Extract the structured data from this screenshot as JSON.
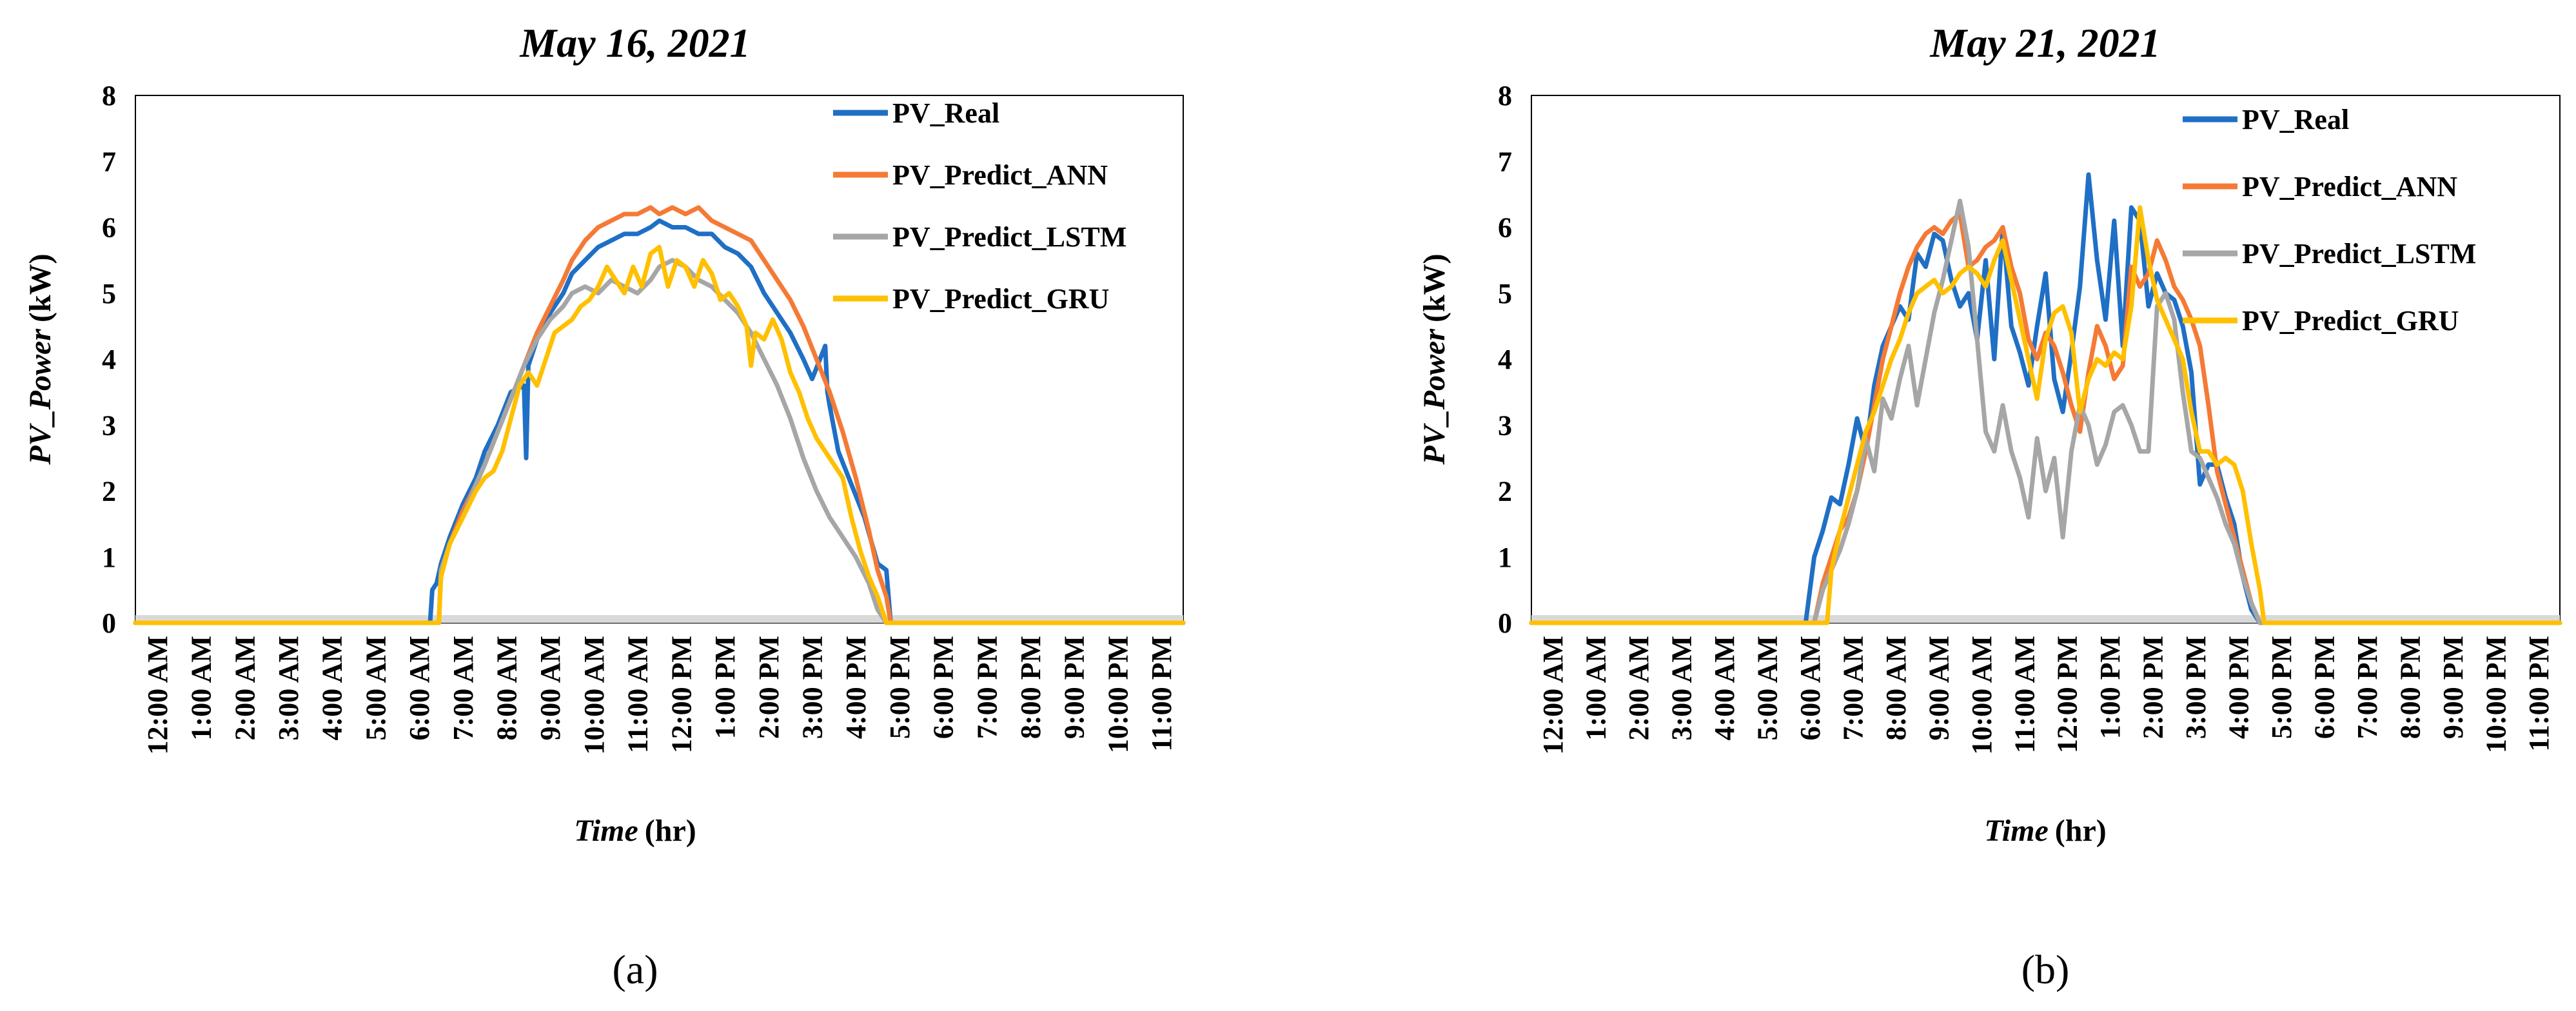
{
  "chart_data": [
    {
      "type": "line",
      "panel_label": "(a)",
      "title": "May 16, 2021",
      "ylabel_italic": "PV_Power",
      "ylabel_unit": "(kW)",
      "xlabel_italic": "Time",
      "xlabel_unit": "(hr)",
      "ylim": [
        0,
        8
      ],
      "yticks": [
        "0",
        "1",
        "2",
        "3",
        "4",
        "5",
        "6",
        "7",
        "8"
      ],
      "xlim": [
        0,
        24
      ],
      "xticks": [
        "12:00 AM",
        "1:00 AM",
        "2:00 AM",
        "3:00 AM",
        "4:00 AM",
        "5:00 AM",
        "6:00 AM",
        "7:00 AM",
        "8:00 AM",
        "9:00 AM",
        "10:00 AM",
        "11:00 AM",
        "12:00 PM",
        "1:00 PM",
        "2:00 PM",
        "3:00 PM",
        "4:00 PM",
        "5:00 PM",
        "6:00 PM",
        "7:00 PM",
        "8:00 PM",
        "9:00 PM",
        "10:00 PM",
        "11:00 PM"
      ],
      "legend_position": "top-right",
      "series": [
        {
          "name": "PV_Real",
          "color": "#1f6fc5",
          "x": [
            0,
            6.75,
            6.8,
            6.9,
            7.0,
            7.2,
            7.5,
            7.8,
            8.0,
            8.3,
            8.6,
            8.9,
            8.95,
            9.0,
            9.2,
            9.5,
            9.8,
            10.0,
            10.3,
            10.6,
            10.9,
            11.2,
            11.5,
            11.8,
            12.0,
            12.3,
            12.6,
            12.9,
            13.2,
            13.5,
            13.8,
            14.1,
            14.4,
            14.7,
            15.0,
            15.3,
            15.5,
            15.8,
            15.85,
            15.9,
            16.1,
            16.4,
            16.7,
            17.0,
            17.2,
            17.3,
            24
          ],
          "y": [
            0,
            0,
            0.5,
            0.6,
            0.9,
            1.3,
            1.8,
            2.2,
            2.6,
            3.0,
            3.5,
            3.6,
            2.5,
            3.9,
            4.3,
            4.7,
            5.0,
            5.3,
            5.5,
            5.7,
            5.8,
            5.9,
            5.9,
            6.0,
            6.1,
            6.0,
            6.0,
            5.9,
            5.9,
            5.7,
            5.6,
            5.4,
            5.0,
            4.7,
            4.4,
            4.0,
            3.7,
            4.2,
            3.5,
            3.3,
            2.6,
            2.1,
            1.6,
            0.9,
            0.8,
            0,
            0
          ]
        },
        {
          "name": "PV_Predict_ANN",
          "color": "#f47a35",
          "x": [
            0,
            6.95,
            7.0,
            7.2,
            7.5,
            7.8,
            8.0,
            8.3,
            8.6,
            8.9,
            9.2,
            9.5,
            9.8,
            10.0,
            10.3,
            10.6,
            10.9,
            11.2,
            11.5,
            11.8,
            12.0,
            12.3,
            12.6,
            12.9,
            13.2,
            13.5,
            13.8,
            14.1,
            14.4,
            14.7,
            15.0,
            15.3,
            15.6,
            15.9,
            16.2,
            16.5,
            16.8,
            17.0,
            17.2,
            17.3,
            24
          ],
          "y": [
            0,
            0,
            0.8,
            1.2,
            1.7,
            2.1,
            2.4,
            2.9,
            3.4,
            3.9,
            4.4,
            4.8,
            5.2,
            5.5,
            5.8,
            6.0,
            6.1,
            6.2,
            6.2,
            6.3,
            6.2,
            6.3,
            6.2,
            6.3,
            6.1,
            6.0,
            5.9,
            5.8,
            5.5,
            5.2,
            4.9,
            4.5,
            4.0,
            3.5,
            2.9,
            2.2,
            1.4,
            0.8,
            0.4,
            0,
            0
          ]
        },
        {
          "name": "PV_Predict_LSTM",
          "color": "#a6a6a6",
          "x": [
            0,
            6.95,
            7.0,
            7.2,
            7.5,
            7.8,
            8.0,
            8.3,
            8.6,
            8.9,
            9.2,
            9.5,
            9.8,
            10.0,
            10.3,
            10.6,
            10.9,
            11.2,
            11.5,
            11.8,
            12.0,
            12.3,
            12.6,
            12.9,
            13.2,
            13.5,
            13.8,
            14.1,
            14.4,
            14.7,
            15.0,
            15.3,
            15.6,
            15.9,
            16.2,
            16.5,
            16.8,
            17.0,
            17.2,
            24
          ],
          "y": [
            0,
            0,
            0.8,
            1.2,
            1.6,
            2.1,
            2.4,
            2.9,
            3.4,
            3.9,
            4.3,
            4.6,
            4.8,
            5.0,
            5.1,
            5.0,
            5.2,
            5.1,
            5.0,
            5.2,
            5.4,
            5.5,
            5.4,
            5.2,
            5.1,
            4.9,
            4.7,
            4.4,
            4.0,
            3.6,
            3.1,
            2.5,
            2.0,
            1.6,
            1.3,
            1.0,
            0.6,
            0.2,
            0,
            0
          ]
        },
        {
          "name": "PV_Predict_GRU",
          "color": "#ffc000",
          "x": [
            0,
            6.95,
            7.0,
            7.2,
            7.5,
            7.8,
            8.0,
            8.2,
            8.4,
            8.6,
            8.8,
            9.0,
            9.2,
            9.4,
            9.6,
            9.8,
            10.0,
            10.2,
            10.4,
            10.6,
            10.8,
            11.0,
            11.2,
            11.4,
            11.6,
            11.8,
            12.0,
            12.2,
            12.4,
            12.6,
            12.8,
            13.0,
            13.2,
            13.4,
            13.6,
            13.8,
            14.0,
            14.1,
            14.2,
            14.4,
            14.6,
            14.8,
            15.0,
            15.2,
            15.4,
            15.6,
            15.8,
            16.0,
            16.2,
            16.4,
            16.6,
            16.8,
            17.0,
            17.2,
            24
          ],
          "y": [
            0,
            0,
            0.7,
            1.2,
            1.6,
            2.0,
            2.2,
            2.3,
            2.6,
            3.1,
            3.6,
            3.8,
            3.6,
            4.0,
            4.4,
            4.5,
            4.6,
            4.8,
            4.9,
            5.1,
            5.4,
            5.2,
            5.0,
            5.4,
            5.1,
            5.6,
            5.7,
            5.1,
            5.5,
            5.4,
            5.1,
            5.5,
            5.3,
            4.9,
            5.0,
            4.8,
            4.5,
            3.9,
            4.4,
            4.3,
            4.6,
            4.3,
            3.8,
            3.5,
            3.1,
            2.8,
            2.6,
            2.4,
            2.2,
            1.6,
            1.1,
            0.7,
            0.4,
            0,
            0
          ]
        }
      ]
    },
    {
      "type": "line",
      "panel_label": "(b)",
      "title": "May 21, 2021",
      "ylabel_italic": "PV_Power",
      "ylabel_unit": "(kW)",
      "xlabel_italic": "Time",
      "xlabel_unit": "(hr)",
      "ylim": [
        0,
        8
      ],
      "yticks": [
        "0",
        "1",
        "2",
        "3",
        "4",
        "5",
        "6",
        "7",
        "8"
      ],
      "xlim": [
        0,
        24
      ],
      "xticks": [
        "12:00 AM",
        "1:00 AM",
        "2:00 AM",
        "3:00 AM",
        "4:00 AM",
        "5:00 AM",
        "6:00 AM",
        "7:00 AM",
        "8:00 AM",
        "9:00 AM",
        "10:00 AM",
        "11:00 AM",
        "12:00 PM",
        "1:00 PM",
        "2:00 PM",
        "3:00 PM",
        "4:00 PM",
        "5:00 PM",
        "6:00 PM",
        "7:00 PM",
        "8:00 PM",
        "9:00 PM",
        "10:00 PM",
        "11:00 PM"
      ],
      "legend_position": "top-right",
      "series": [
        {
          "name": "PV_Real",
          "color": "#1f6fc5",
          "x": [
            0,
            6.4,
            6.6,
            6.8,
            7.0,
            7.2,
            7.4,
            7.6,
            7.8,
            8.0,
            8.2,
            8.4,
            8.6,
            8.8,
            9.0,
            9.2,
            9.4,
            9.6,
            9.8,
            10.0,
            10.2,
            10.4,
            10.6,
            10.8,
            11.0,
            11.2,
            11.4,
            11.6,
            11.8,
            12.0,
            12.2,
            12.4,
            12.6,
            12.8,
            13.0,
            13.2,
            13.4,
            13.6,
            13.8,
            14.0,
            14.2,
            14.4,
            14.6,
            14.8,
            15.0,
            15.2,
            15.4,
            15.6,
            15.8,
            16.0,
            16.2,
            16.4,
            16.6,
            16.8,
            17.0,
            17.1,
            24
          ],
          "y": [
            0,
            0,
            1.0,
            1.4,
            1.9,
            1.8,
            2.4,
            3.1,
            2.6,
            3.6,
            4.2,
            4.5,
            4.8,
            4.6,
            5.6,
            5.4,
            5.9,
            5.8,
            5.2,
            4.8,
            5.0,
            4.3,
            5.5,
            4.0,
            6.0,
            4.5,
            4.1,
            3.6,
            4.5,
            5.3,
            3.7,
            3.2,
            4.1,
            5.1,
            6.8,
            5.5,
            4.6,
            6.1,
            4.2,
            6.3,
            6.1,
            4.8,
            5.3,
            5.0,
            4.9,
            4.5,
            3.8,
            2.1,
            2.4,
            2.4,
            1.9,
            1.5,
            0.7,
            0.2,
            0,
            0,
            0
          ]
        },
        {
          "name": "PV_Predict_ANN",
          "color": "#f47a35",
          "x": [
            0,
            6.6,
            6.8,
            7.0,
            7.2,
            7.4,
            7.6,
            7.8,
            8.0,
            8.2,
            8.4,
            8.6,
            8.8,
            9.0,
            9.2,
            9.4,
            9.6,
            9.8,
            10.0,
            10.2,
            10.4,
            10.6,
            10.8,
            11.0,
            11.2,
            11.4,
            11.6,
            11.8,
            12.0,
            12.2,
            12.4,
            12.6,
            12.8,
            13.0,
            13.2,
            13.4,
            13.6,
            13.8,
            14.0,
            14.2,
            14.4,
            14.6,
            14.8,
            15.0,
            15.2,
            15.4,
            15.6,
            15.8,
            16.0,
            16.2,
            16.4,
            16.6,
            16.8,
            17.0,
            24
          ],
          "y": [
            0,
            0,
            0.6,
            1.0,
            1.4,
            1.6,
            2.0,
            2.6,
            3.3,
            4.0,
            4.5,
            5.0,
            5.4,
            5.7,
            5.9,
            6.0,
            5.9,
            6.1,
            6.2,
            5.4,
            5.5,
            5.7,
            5.8,
            6.0,
            5.4,
            5.0,
            4.3,
            4.0,
            4.4,
            4.2,
            3.8,
            3.3,
            2.9,
            3.8,
            4.5,
            4.2,
            3.7,
            3.9,
            5.4,
            5.1,
            5.3,
            5.8,
            5.5,
            5.1,
            4.9,
            4.6,
            4.2,
            3.3,
            2.3,
            1.8,
            1.3,
            0.8,
            0.3,
            0,
            0
          ]
        },
        {
          "name": "PV_Predict_LSTM",
          "color": "#a6a6a6",
          "x": [
            0,
            6.6,
            6.8,
            7.0,
            7.2,
            7.4,
            7.6,
            7.8,
            8.0,
            8.2,
            8.4,
            8.6,
            8.8,
            9.0,
            9.2,
            9.4,
            9.6,
            9.8,
            10.0,
            10.2,
            10.4,
            10.6,
            10.8,
            11.0,
            11.2,
            11.4,
            11.6,
            11.8,
            12.0,
            12.2,
            12.4,
            12.6,
            12.8,
            13.0,
            13.2,
            13.4,
            13.6,
            13.8,
            14.0,
            14.2,
            14.4,
            14.6,
            14.8,
            15.0,
            15.2,
            15.4,
            15.6,
            15.8,
            16.0,
            16.2,
            16.4,
            16.6,
            16.8,
            17.0,
            24
          ],
          "y": [
            0,
            0,
            0.5,
            0.8,
            1.1,
            1.5,
            2.0,
            2.8,
            2.3,
            3.4,
            3.1,
            3.7,
            4.2,
            3.3,
            4.0,
            4.7,
            5.2,
            5.8,
            6.4,
            5.7,
            4.3,
            2.9,
            2.6,
            3.3,
            2.6,
            2.2,
            1.6,
            2.8,
            2.0,
            2.5,
            1.3,
            2.6,
            3.3,
            3.0,
            2.4,
            2.7,
            3.2,
            3.3,
            3.0,
            2.6,
            2.6,
            4.8,
            5.0,
            4.6,
            3.5,
            2.6,
            2.5,
            2.2,
            1.9,
            1.5,
            1.2,
            0.7,
            0.3,
            0,
            0
          ]
        },
        {
          "name": "PV_Predict_GRU",
          "color": "#ffc000",
          "x": [
            0,
            6.9,
            7.0,
            7.2,
            7.4,
            7.6,
            7.8,
            8.0,
            8.2,
            8.4,
            8.6,
            8.8,
            9.0,
            9.2,
            9.4,
            9.6,
            9.8,
            10.0,
            10.2,
            10.4,
            10.6,
            10.8,
            11.0,
            11.2,
            11.4,
            11.6,
            11.8,
            12.0,
            12.2,
            12.4,
            12.6,
            12.8,
            13.0,
            13.2,
            13.4,
            13.6,
            13.8,
            14.0,
            14.2,
            14.4,
            14.6,
            14.8,
            15.0,
            15.2,
            15.4,
            15.6,
            15.8,
            16.0,
            16.2,
            16.4,
            16.6,
            16.8,
            17.0,
            17.1,
            24
          ],
          "y": [
            0,
            0,
            0.8,
            1.4,
            1.9,
            2.4,
            2.9,
            3.2,
            3.6,
            4.0,
            4.3,
            4.7,
            5.0,
            5.1,
            5.2,
            5.0,
            5.1,
            5.3,
            5.4,
            5.3,
            5.1,
            5.5,
            5.8,
            5.2,
            4.6,
            4.0,
            3.4,
            4.3,
            4.7,
            4.8,
            4.4,
            3.2,
            3.7,
            4.0,
            3.9,
            4.1,
            4.0,
            4.8,
            6.3,
            5.5,
            4.9,
            4.6,
            4.3,
            4.0,
            3.2,
            2.6,
            2.6,
            2.4,
            2.5,
            2.4,
            2.0,
            1.2,
            0.5,
            0,
            0
          ]
        }
      ]
    }
  ]
}
